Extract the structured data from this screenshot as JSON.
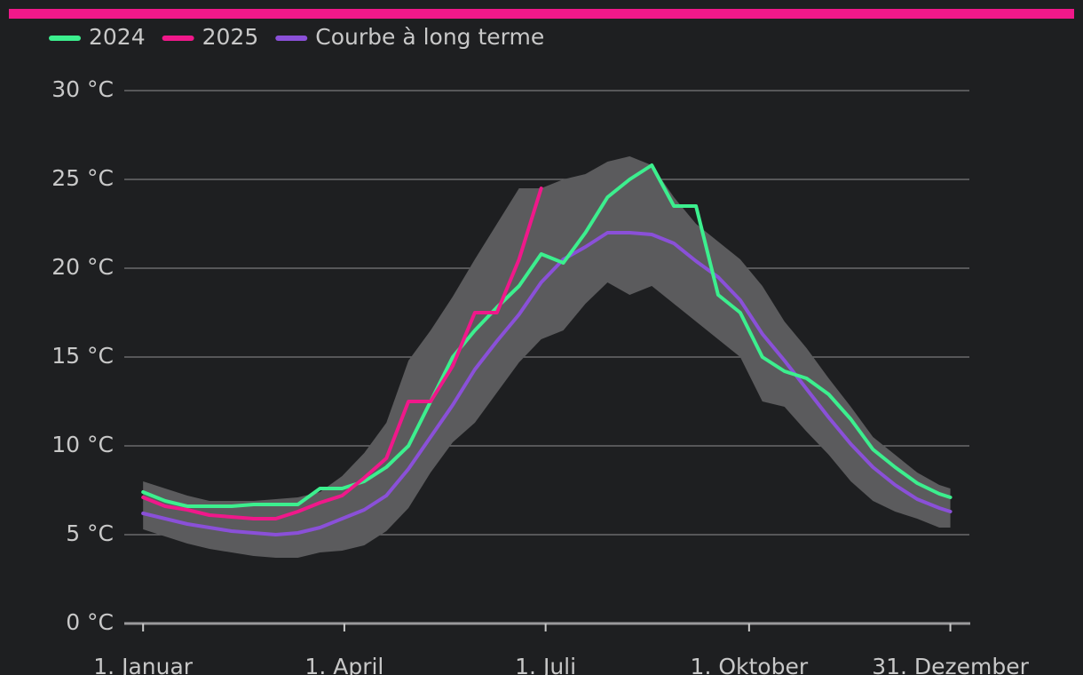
{
  "chart_data": {
    "type": "line",
    "legend": "top-left",
    "grid": true,
    "x": [
      1,
      11,
      21,
      31,
      41,
      51,
      61,
      71,
      81,
      91,
      101,
      111,
      121,
      131,
      141,
      151,
      161,
      171,
      181,
      191,
      201,
      211,
      221,
      231,
      241,
      251,
      261,
      271,
      281,
      291,
      301,
      311,
      321,
      331,
      341,
      351,
      361,
      366
    ],
    "xlim": [
      -7.5,
      375
    ],
    "xticks": [
      {
        "value": 1,
        "label": "1. Januar"
      },
      {
        "value": 92,
        "label": "1. April"
      },
      {
        "value": 183,
        "label": "1. Juli"
      },
      {
        "value": 275,
        "label": "1. Oktober"
      },
      {
        "value": 366,
        "label": "31. Dezember"
      }
    ],
    "ylim": [
      0,
      30
    ],
    "yticks": [
      {
        "value": 0,
        "label": "0 °C"
      },
      {
        "value": 5,
        "label": "5 °C"
      },
      {
        "value": 10,
        "label": "10 °C"
      },
      {
        "value": 15,
        "label": "15 °C"
      },
      {
        "value": 20,
        "label": "20 °C"
      },
      {
        "value": 25,
        "label": "25 °C"
      },
      {
        "value": 30,
        "label": "30 °C"
      }
    ],
    "band": {
      "color": "#5b5b5d",
      "lower": [
        5.3,
        4.9,
        4.5,
        4.2,
        4.0,
        3.8,
        3.7,
        3.7,
        4.0,
        4.1,
        4.4,
        5.2,
        6.5,
        8.5,
        10.2,
        11.3,
        13.0,
        14.7,
        16.0,
        16.5,
        18.0,
        19.2,
        18.5,
        19.0,
        18.0,
        17.0,
        16.0,
        15.0,
        12.5,
        12.2,
        10.8,
        9.5,
        8.0,
        6.9,
        6.3,
        5.9,
        5.4,
        5.4
      ],
      "upper": [
        8.0,
        7.6,
        7.2,
        6.9,
        6.9,
        6.9,
        7.0,
        7.1,
        7.4,
        8.3,
        9.6,
        11.3,
        14.8,
        16.5,
        18.4,
        20.5,
        22.5,
        24.5,
        24.5,
        25.0,
        25.3,
        26.0,
        26.3,
        25.8,
        24.0,
        22.5,
        21.5,
        20.5,
        19.0,
        17.0,
        15.5,
        13.8,
        12.2,
        10.5,
        9.5,
        8.5,
        7.8,
        7.6
      ]
    },
    "series": [
      {
        "name": "2024",
        "color": "#3cef8e",
        "values": [
          7.4,
          6.9,
          6.6,
          6.6,
          6.6,
          6.7,
          6.7,
          6.7,
          7.6,
          7.6,
          8.0,
          8.8,
          10.0,
          12.5,
          15.0,
          16.5,
          17.8,
          19.0,
          20.8,
          20.3,
          22.0,
          24.0,
          25.0,
          25.8,
          23.5,
          23.5,
          18.5,
          17.5,
          15.0,
          14.2,
          13.8,
          12.9,
          11.5,
          9.8,
          8.8,
          7.9,
          7.3,
          7.1
        ]
      },
      {
        "name": "2025",
        "color": "#f0188a",
        "values": [
          7.1,
          6.6,
          6.4,
          6.1,
          6.0,
          5.9,
          5.9,
          6.3,
          6.8,
          7.2,
          8.2,
          9.3,
          12.5,
          12.5,
          14.5,
          17.5,
          17.5,
          20.5,
          24.5,
          null,
          null,
          null,
          null,
          null,
          null,
          null,
          null,
          null,
          null,
          null,
          null,
          null,
          null,
          null,
          null,
          null,
          null,
          null
        ]
      },
      {
        "name": "Courbe à long terme",
        "color": "#8a50d8",
        "values": [
          6.2,
          5.9,
          5.6,
          5.4,
          5.2,
          5.1,
          5.0,
          5.1,
          5.4,
          5.9,
          6.4,
          7.2,
          8.7,
          10.5,
          12.3,
          14.3,
          15.9,
          17.4,
          19.2,
          20.5,
          21.2,
          22.0,
          22.0,
          21.9,
          21.4,
          20.4,
          19.5,
          18.2,
          16.3,
          14.8,
          13.2,
          11.6,
          10.1,
          8.8,
          7.8,
          7.0,
          6.5,
          6.3
        ]
      }
    ]
  }
}
